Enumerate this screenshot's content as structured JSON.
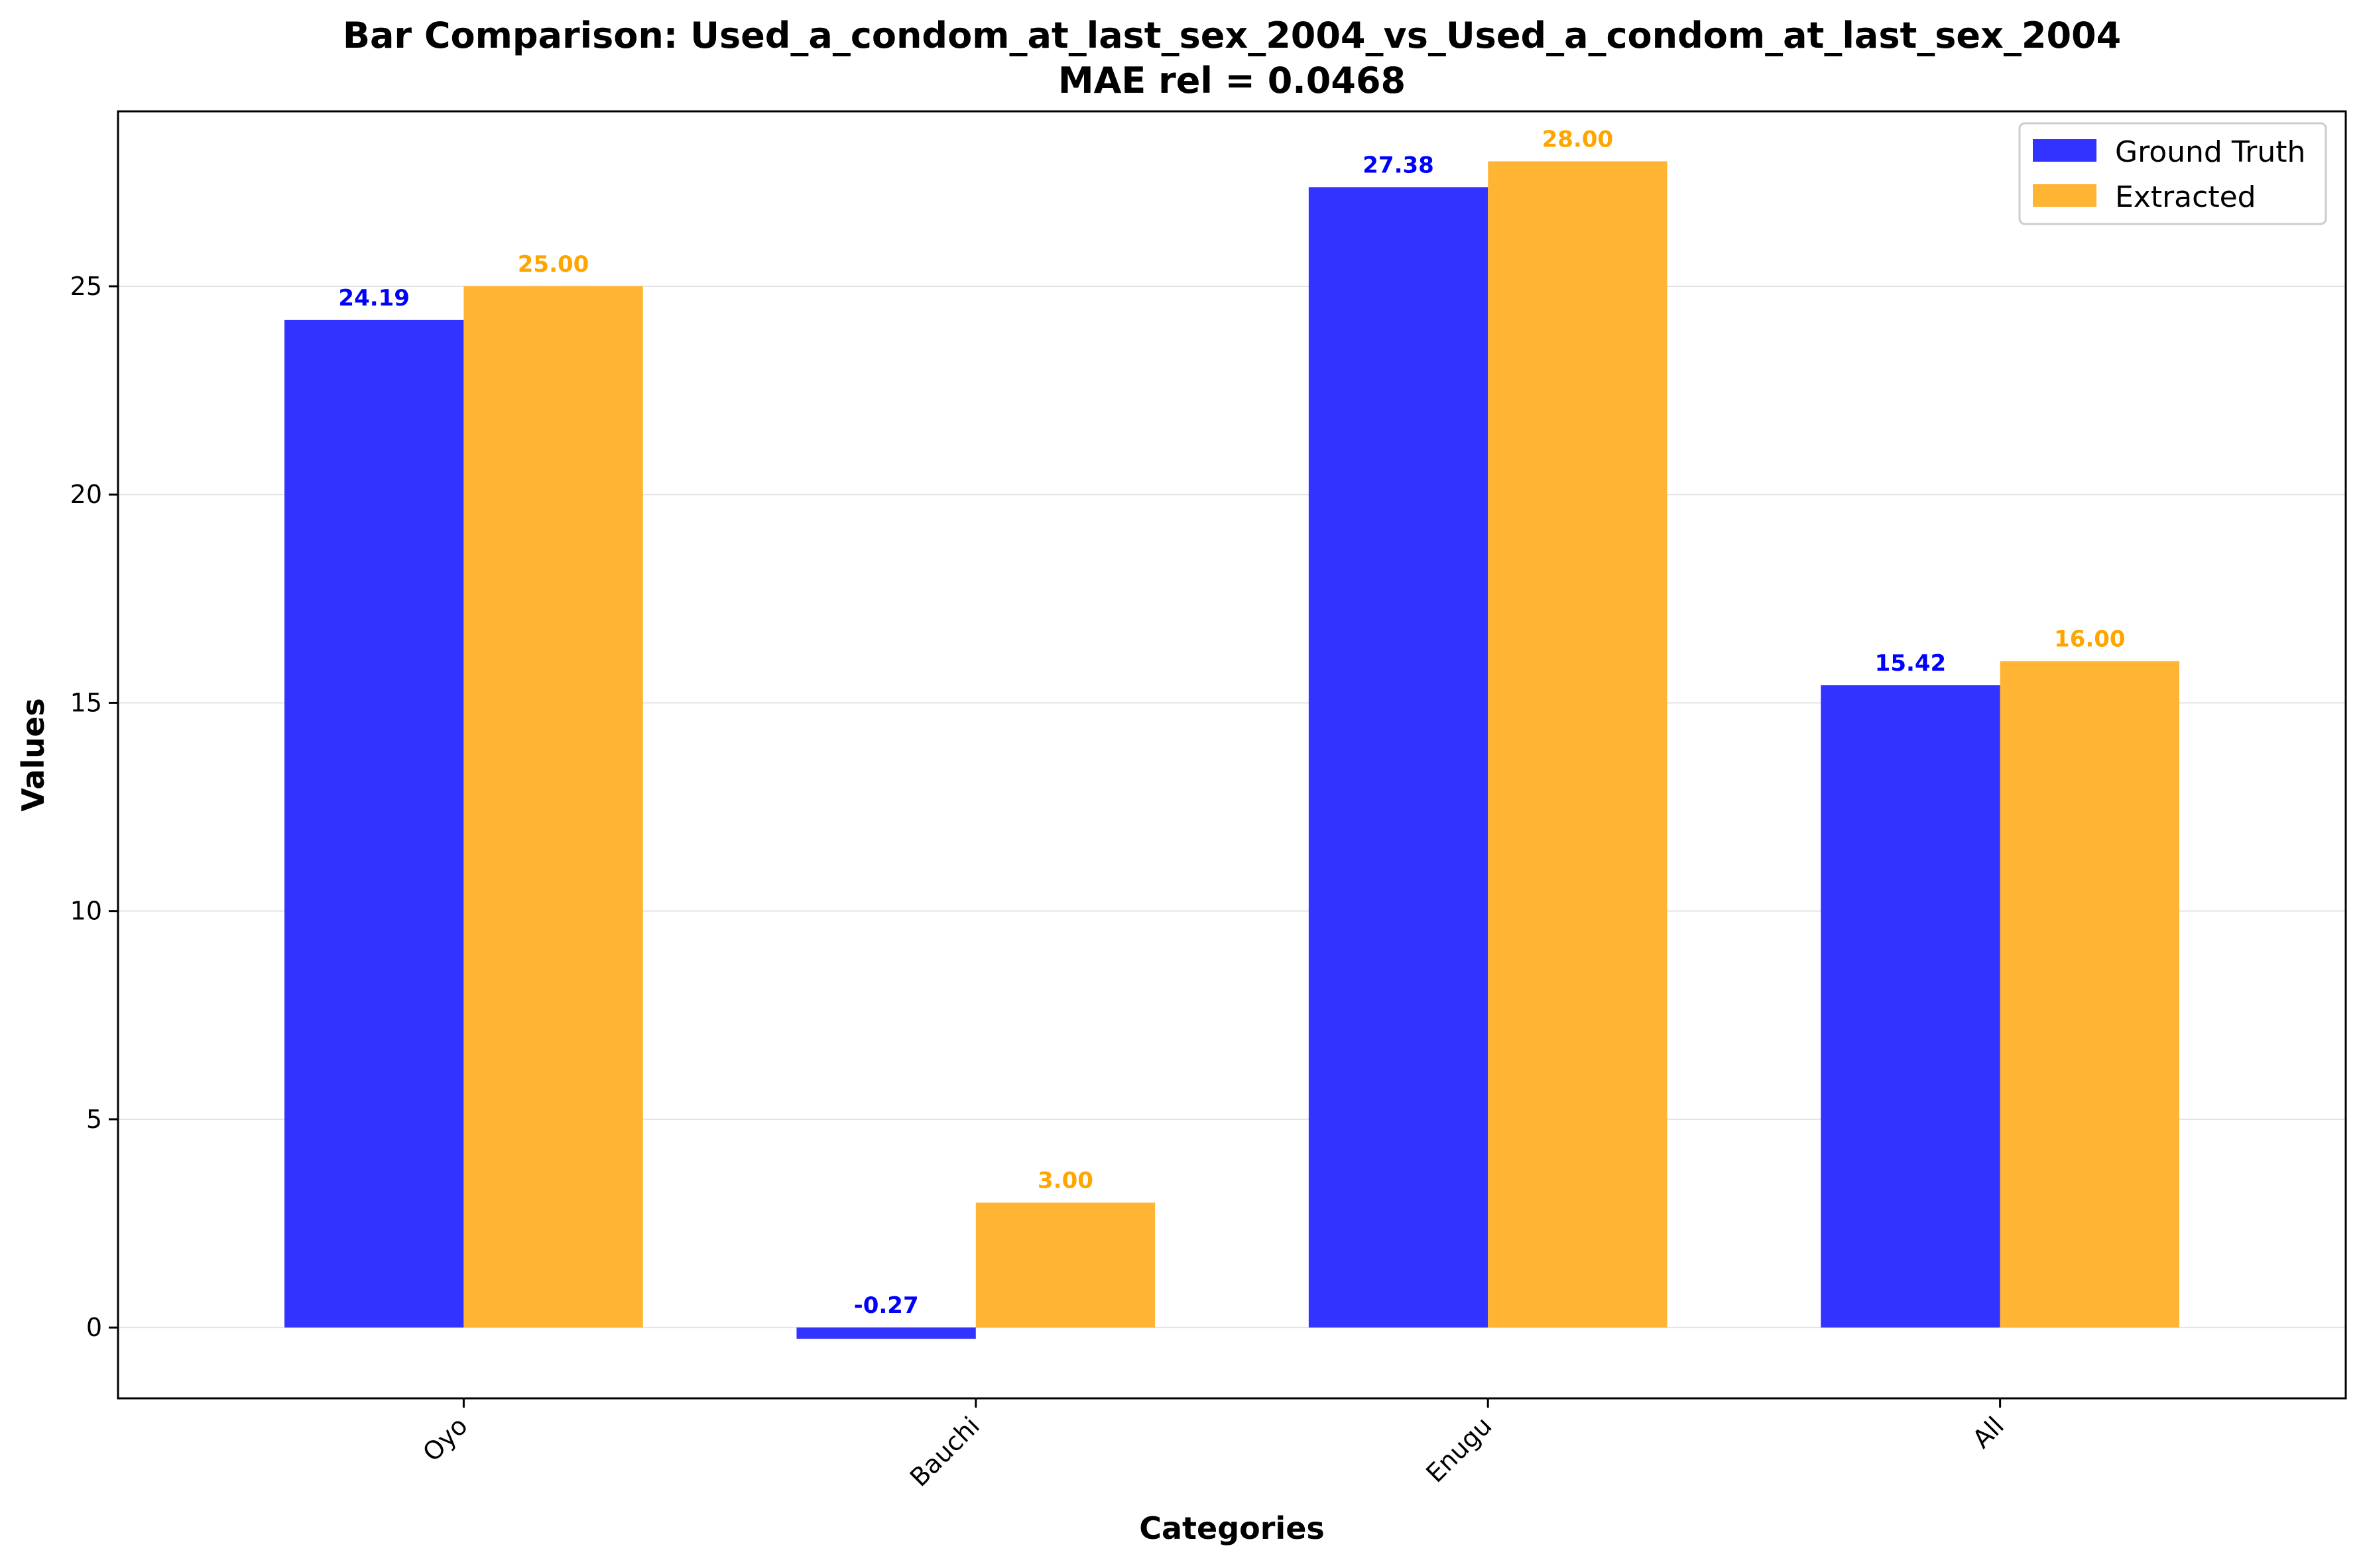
{
  "chart_data": {
    "type": "bar",
    "title": "Bar Comparison: Used_a_condom_at_last_sex_2004_vs_Used_a_condom_at_last_sex_2004",
    "subtitle": "MAE rel = 0.0468",
    "xlabel": "Categories",
    "ylabel": "Values",
    "categories": [
      "Oyo",
      "Bauchi",
      "Enugu",
      "All"
    ],
    "series": [
      {
        "name": "Ground Truth",
        "color": "#3333ff",
        "label_color": "#0000ff",
        "values": [
          24.19,
          -0.27,
          27.38,
          15.42
        ]
      },
      {
        "name": "Extracted",
        "color": "#ffb533",
        "label_color": "#ffa500",
        "values": [
          25.0,
          3.0,
          28.0,
          16.0
        ]
      }
    ],
    "ylim": [
      -1.7,
      29.2
    ],
    "yticks": [
      0,
      5,
      10,
      15,
      20,
      25
    ],
    "grid": true,
    "legend_position": "top-right"
  }
}
